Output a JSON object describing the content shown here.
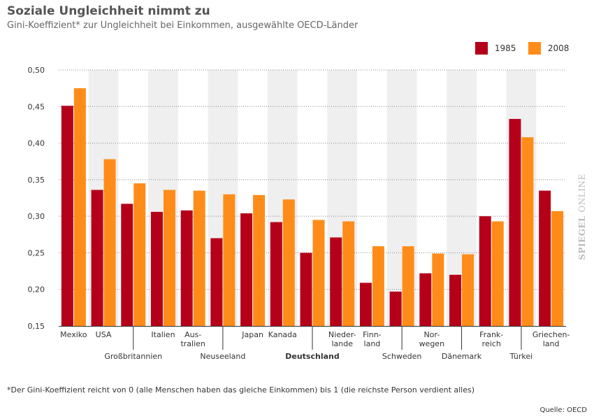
{
  "header": {
    "title": "Soziale Ungleichheit nimmt zu",
    "subtitle": "Gini-Koeffizient* zur Ungleichheit bei Einkommen, ausgewählte OECD-Länder"
  },
  "legend": [
    {
      "label": "1985",
      "color": "#b5001a"
    },
    {
      "label": "2008",
      "color": "#ff8c19"
    }
  ],
  "chart_data": {
    "type": "bar",
    "title": "Soziale Ungleichheit nimmt zu",
    "ylabel": "",
    "xlabel": "",
    "ylim": [
      0.15,
      0.5
    ],
    "yticks": [
      0.15,
      0.2,
      0.25,
      0.3,
      0.35,
      0.4,
      0.45,
      0.5
    ],
    "ytick_labels": [
      "0,15",
      "0,20",
      "0,25",
      "0,30",
      "0,35",
      "0,40",
      "0,45",
      "0,50"
    ],
    "categories": [
      "Mexiko",
      "USA",
      "Großbritannien",
      "Italien",
      "Australien",
      "Neuseeland",
      "Japan",
      "Kanada",
      "Deutschland",
      "Niederlande",
      "Finnland",
      "Schweden",
      "Norwegen",
      "Dänemark",
      "Frankreich",
      "Türkei",
      "Griechenland"
    ],
    "category_labels": [
      {
        "lines": [
          "Mexiko"
        ],
        "row": "top"
      },
      {
        "lines": [
          "USA"
        ],
        "row": "top"
      },
      {
        "lines": [
          "Großbritannien"
        ],
        "row": "bottom"
      },
      {
        "lines": [
          "Italien"
        ],
        "row": "top"
      },
      {
        "lines": [
          "Aus-",
          "tralien"
        ],
        "row": "top"
      },
      {
        "lines": [
          "Neuseeland"
        ],
        "row": "bottom"
      },
      {
        "lines": [
          "Japan"
        ],
        "row": "top"
      },
      {
        "lines": [
          "Kanada"
        ],
        "row": "top"
      },
      {
        "lines": [
          "Deutschland"
        ],
        "row": "bottom",
        "bold": true
      },
      {
        "lines": [
          "Nieder-",
          "lande"
        ],
        "row": "top"
      },
      {
        "lines": [
          "Finn-",
          "land"
        ],
        "row": "top"
      },
      {
        "lines": [
          "Schweden"
        ],
        "row": "bottom"
      },
      {
        "lines": [
          "Nor-",
          "wegen"
        ],
        "row": "top"
      },
      {
        "lines": [
          "Dänemark"
        ],
        "row": "bottom"
      },
      {
        "lines": [
          "Frank-",
          "reich"
        ],
        "row": "top"
      },
      {
        "lines": [
          "Türkei"
        ],
        "row": "bottom"
      },
      {
        "lines": [
          "Griechen-",
          "land"
        ],
        "row": "top"
      }
    ],
    "series": [
      {
        "name": "1985",
        "color": "#b5001a",
        "values": [
          0.451,
          0.336,
          0.317,
          0.306,
          0.308,
          0.27,
          0.304,
          0.292,
          0.25,
          0.271,
          0.209,
          0.197,
          0.222,
          0.22,
          0.3,
          0.433,
          0.335
        ]
      },
      {
        "name": "2008",
        "color": "#ff8c19",
        "values": [
          0.475,
          0.378,
          0.345,
          0.336,
          0.335,
          0.33,
          0.329,
          0.323,
          0.295,
          0.293,
          0.259,
          0.259,
          0.249,
          0.248,
          0.293,
          0.408,
          0.307
        ]
      }
    ],
    "grid": true,
    "legend_position": "top-right"
  },
  "footnote": "*Der Gini-Koeffizient reicht von 0 (alle Menschen haben das gleiche Einkommen) bis 1 (die reichste Person verdient alles)",
  "source": "Quelle: OECD",
  "watermark": {
    "brand": "SPIEGEL",
    "suffix": "ONLINE"
  },
  "colors": {
    "band": "#efefef",
    "axis": "#333333",
    "grid": "#888888"
  }
}
